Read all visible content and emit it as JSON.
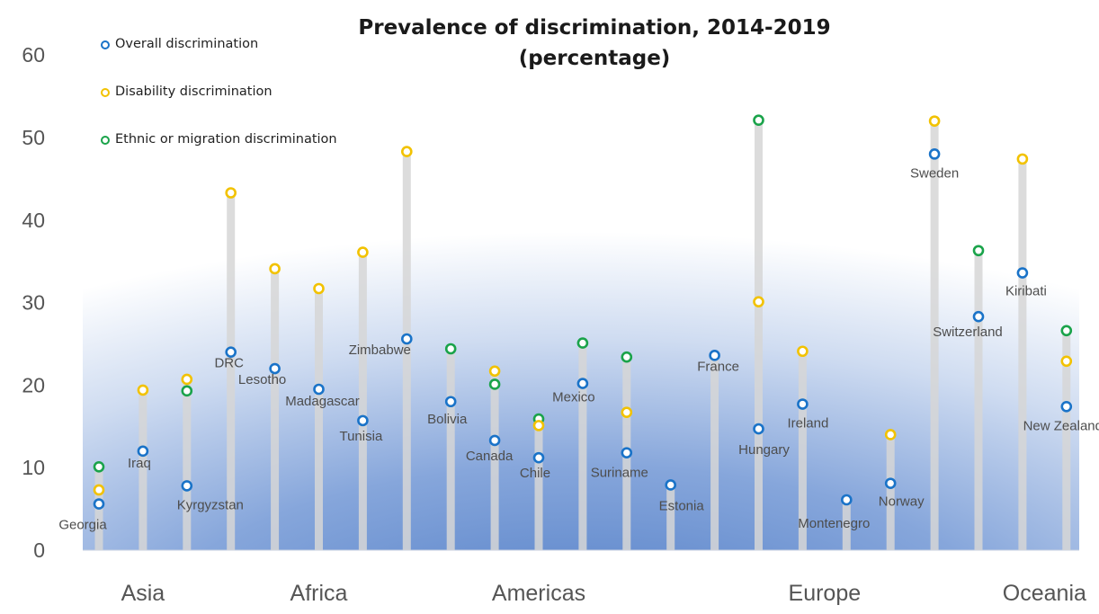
{
  "title_line1": "Prevalence of discrimination, 2014-2019",
  "title_line2": "(percentage)",
  "legend": [
    {
      "label": "Overall discrimination",
      "color": "#1a73c8"
    },
    {
      "label": "Disability discrimination",
      "color": "#f2c200"
    },
    {
      "label": "Ethnic or migration discrimination",
      "color": "#1aa34a"
    }
  ],
  "chart_data": {
    "type": "scatter",
    "title": "Prevalence of discrimination, 2014-2019 (percentage)",
    "ylim": [
      0,
      60
    ],
    "yticks": [
      0,
      10,
      20,
      30,
      40,
      50,
      60
    ],
    "grid": false,
    "legend_position": "top-left",
    "regions": [
      "Asia",
      "Africa",
      "Americas",
      "Europe",
      "Oceania"
    ],
    "countries": [
      {
        "name": "Georgia",
        "region": "Asia",
        "overall": 5.6,
        "disability": 7.3,
        "ethnic": 10.1
      },
      {
        "name": "Iraq",
        "region": "Asia",
        "overall": 12.0,
        "disability": 19.4,
        "ethnic": null
      },
      {
        "name": "Kyrgyzstan",
        "region": "Asia",
        "overall": 7.8,
        "disability": 20.7,
        "ethnic": 19.3
      },
      {
        "name": "DRC",
        "region": "Africa",
        "overall": 24.0,
        "disability": 43.3,
        "ethnic": null
      },
      {
        "name": "Lesotho",
        "region": "Africa",
        "overall": 22.0,
        "disability": 34.1,
        "ethnic": null
      },
      {
        "name": "Madagascar",
        "region": "Africa",
        "overall": 19.5,
        "disability": 31.7,
        "ethnic": null
      },
      {
        "name": "Tunisia",
        "region": "Africa",
        "overall": 15.7,
        "disability": 36.1,
        "ethnic": null
      },
      {
        "name": "Zimbabwe",
        "region": "Africa",
        "overall": 25.6,
        "disability": 48.3,
        "ethnic": null
      },
      {
        "name": "Bolivia",
        "region": "Americas",
        "overall": 18.0,
        "disability": null,
        "ethnic": 24.4
      },
      {
        "name": "Canada",
        "region": "Americas",
        "overall": 13.3,
        "disability": 21.7,
        "ethnic": 20.1
      },
      {
        "name": "Chile",
        "region": "Americas",
        "overall": 11.2,
        "disability": 15.1,
        "ethnic": 15.9
      },
      {
        "name": "Mexico",
        "region": "Americas",
        "overall": 20.2,
        "disability": null,
        "ethnic": 25.1
      },
      {
        "name": "Suriname",
        "region": "Americas",
        "overall": 11.8,
        "disability": 16.7,
        "ethnic": 23.4
      },
      {
        "name": "Estonia",
        "region": "Europe",
        "overall": 7.9,
        "disability": null,
        "ethnic": null
      },
      {
        "name": "France",
        "region": "Europe",
        "overall": 23.6,
        "disability": null,
        "ethnic": null
      },
      {
        "name": "Hungary",
        "region": "Europe",
        "overall": 14.7,
        "disability": 30.1,
        "ethnic": 52.1
      },
      {
        "name": "Ireland",
        "region": "Europe",
        "overall": 17.7,
        "disability": 24.1,
        "ethnic": null
      },
      {
        "name": "Montenegro",
        "region": "Europe",
        "overall": 6.1,
        "disability": null,
        "ethnic": null
      },
      {
        "name": "Norway",
        "region": "Europe",
        "overall": 8.1,
        "disability": 14.0,
        "ethnic": null
      },
      {
        "name": "Sweden",
        "region": "Europe",
        "overall": 48.0,
        "disability": 52.0,
        "ethnic": null
      },
      {
        "name": "Switzerland",
        "region": "Europe",
        "overall": 28.3,
        "disability": null,
        "ethnic": 36.3
      },
      {
        "name": "Kiribati",
        "region": "Oceania",
        "overall": 33.6,
        "disability": 47.4,
        "ethnic": null
      },
      {
        "name": "New Zealand",
        "region": "Oceania",
        "overall": 17.4,
        "disability": 22.9,
        "ethnic": 26.6
      }
    ]
  }
}
